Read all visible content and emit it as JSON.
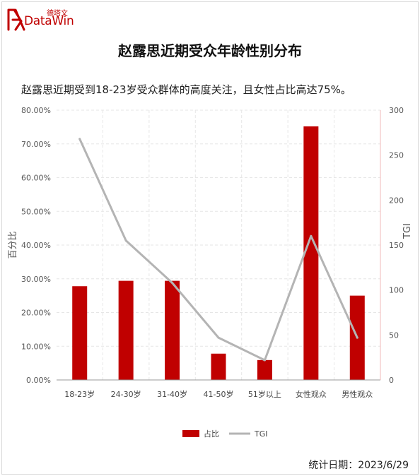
{
  "header": {
    "logo_cn": "德塔文",
    "logo_en": "DataWin",
    "title": "赵露思近期受众年龄性别分布",
    "subtitle": "赵露思近期受到18-23岁受众群体的高度关注，且女性占比高达75%。"
  },
  "footer": {
    "date_label": "统计日期：2023/6/29"
  },
  "colors": {
    "bar": "#c00000",
    "line": "#b4b4b4",
    "brand": "#c00000"
  },
  "chart_data": {
    "type": "bar",
    "title": "赵露思近期受众年龄性别分布",
    "categories": [
      "18-23岁",
      "24-30岁",
      "31-40岁",
      "41-50岁",
      "51岁以上",
      "女性观众",
      "男性观众"
    ],
    "series": [
      {
        "name": "占比",
        "type": "bar",
        "axis": "left",
        "values": [
          27.8,
          29.4,
          29.4,
          7.8,
          5.9,
          75.2,
          25.0
        ]
      },
      {
        "name": "TGI",
        "type": "line",
        "axis": "right",
        "values": [
          268,
          155,
          108,
          47,
          22,
          160,
          47
        ]
      }
    ],
    "ylabel": "百分比",
    "y2label": "TGI",
    "ylim": [
      0,
      80
    ],
    "y2lim": [
      0,
      300
    ],
    "yticks": [
      "0.00%",
      "10.00%",
      "20.00%",
      "30.00%",
      "40.00%",
      "50.00%",
      "60.00%",
      "70.00%",
      "80.00%"
    ],
    "y2ticks": [
      "0",
      "50",
      "100",
      "150",
      "200",
      "250",
      "300"
    ],
    "grid": true,
    "legend": "bottom"
  }
}
